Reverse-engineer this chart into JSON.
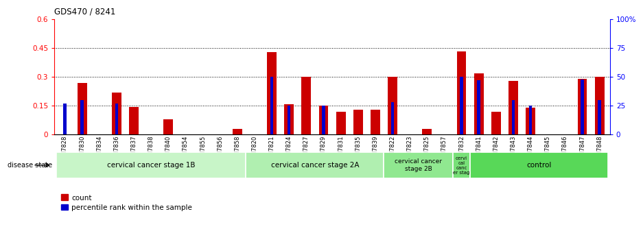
{
  "title": "GDS470 / 8241",
  "samples": [
    "GSM7828",
    "GSM7830",
    "GSM7834",
    "GSM7836",
    "GSM7837",
    "GSM7838",
    "GSM7840",
    "GSM7854",
    "GSM7855",
    "GSM7856",
    "GSM7858",
    "GSM7820",
    "GSM7821",
    "GSM7824",
    "GSM7827",
    "GSM7829",
    "GSM7831",
    "GSM7835",
    "GSM7839",
    "GSM7822",
    "GSM7823",
    "GSM7825",
    "GSM7857",
    "GSM7832",
    "GSM7841",
    "GSM7842",
    "GSM7843",
    "GSM7844",
    "GSM7845",
    "GSM7846",
    "GSM7847",
    "GSM7848"
  ],
  "count_values": [
    0.0,
    0.27,
    0.0,
    0.22,
    0.145,
    0.0,
    0.08,
    0.0,
    0.0,
    0.0,
    0.03,
    0.0,
    0.43,
    0.16,
    0.3,
    0.15,
    0.12,
    0.13,
    0.13,
    0.3,
    0.0,
    0.03,
    0.0,
    0.435,
    0.32,
    0.12,
    0.28,
    0.14,
    0.0,
    0.0,
    0.29,
    0.3
  ],
  "percentile_values": [
    27.0,
    30.0,
    0.0,
    27.0,
    0.0,
    0.0,
    0.0,
    0.0,
    0.0,
    0.0,
    0.0,
    0.0,
    50.0,
    25.0,
    0.0,
    25.0,
    0.0,
    0.0,
    0.0,
    28.0,
    0.0,
    0.0,
    0.0,
    50.0,
    47.0,
    0.0,
    30.0,
    25.0,
    0.0,
    0.0,
    48.0,
    30.0
  ],
  "groups": [
    {
      "label": "cervical cancer stage 1B",
      "start": 0,
      "end": 11,
      "color": "#c8f5c8"
    },
    {
      "label": "cervical cancer stage 2A",
      "start": 11,
      "end": 19,
      "color": "#b0efb0"
    },
    {
      "label": "cervical cancer\nstage 2B",
      "start": 19,
      "end": 23,
      "color": "#90e890"
    },
    {
      "label": "cervi\ncal\ncanc\ner stag",
      "start": 23,
      "end": 24,
      "color": "#78e078"
    },
    {
      "label": "control",
      "start": 24,
      "end": 32,
      "color": "#58d858"
    }
  ],
  "ylim_left": [
    0,
    0.6
  ],
  "ylim_right": [
    0,
    100
  ],
  "yticks_left": [
    0,
    0.15,
    0.3,
    0.45,
    0.6
  ],
  "yticks_left_labels": [
    "0",
    "0.15",
    "0.3",
    "0.45",
    "0.6"
  ],
  "yticks_right": [
    0,
    25,
    50,
    75,
    100
  ],
  "yticks_right_labels": [
    "0",
    "25",
    "50",
    "75",
    "100%"
  ],
  "bar_color_red": "#cc0000",
  "bar_color_blue": "#0000cc",
  "red_bar_width": 0.55,
  "blue_bar_width": 0.18
}
